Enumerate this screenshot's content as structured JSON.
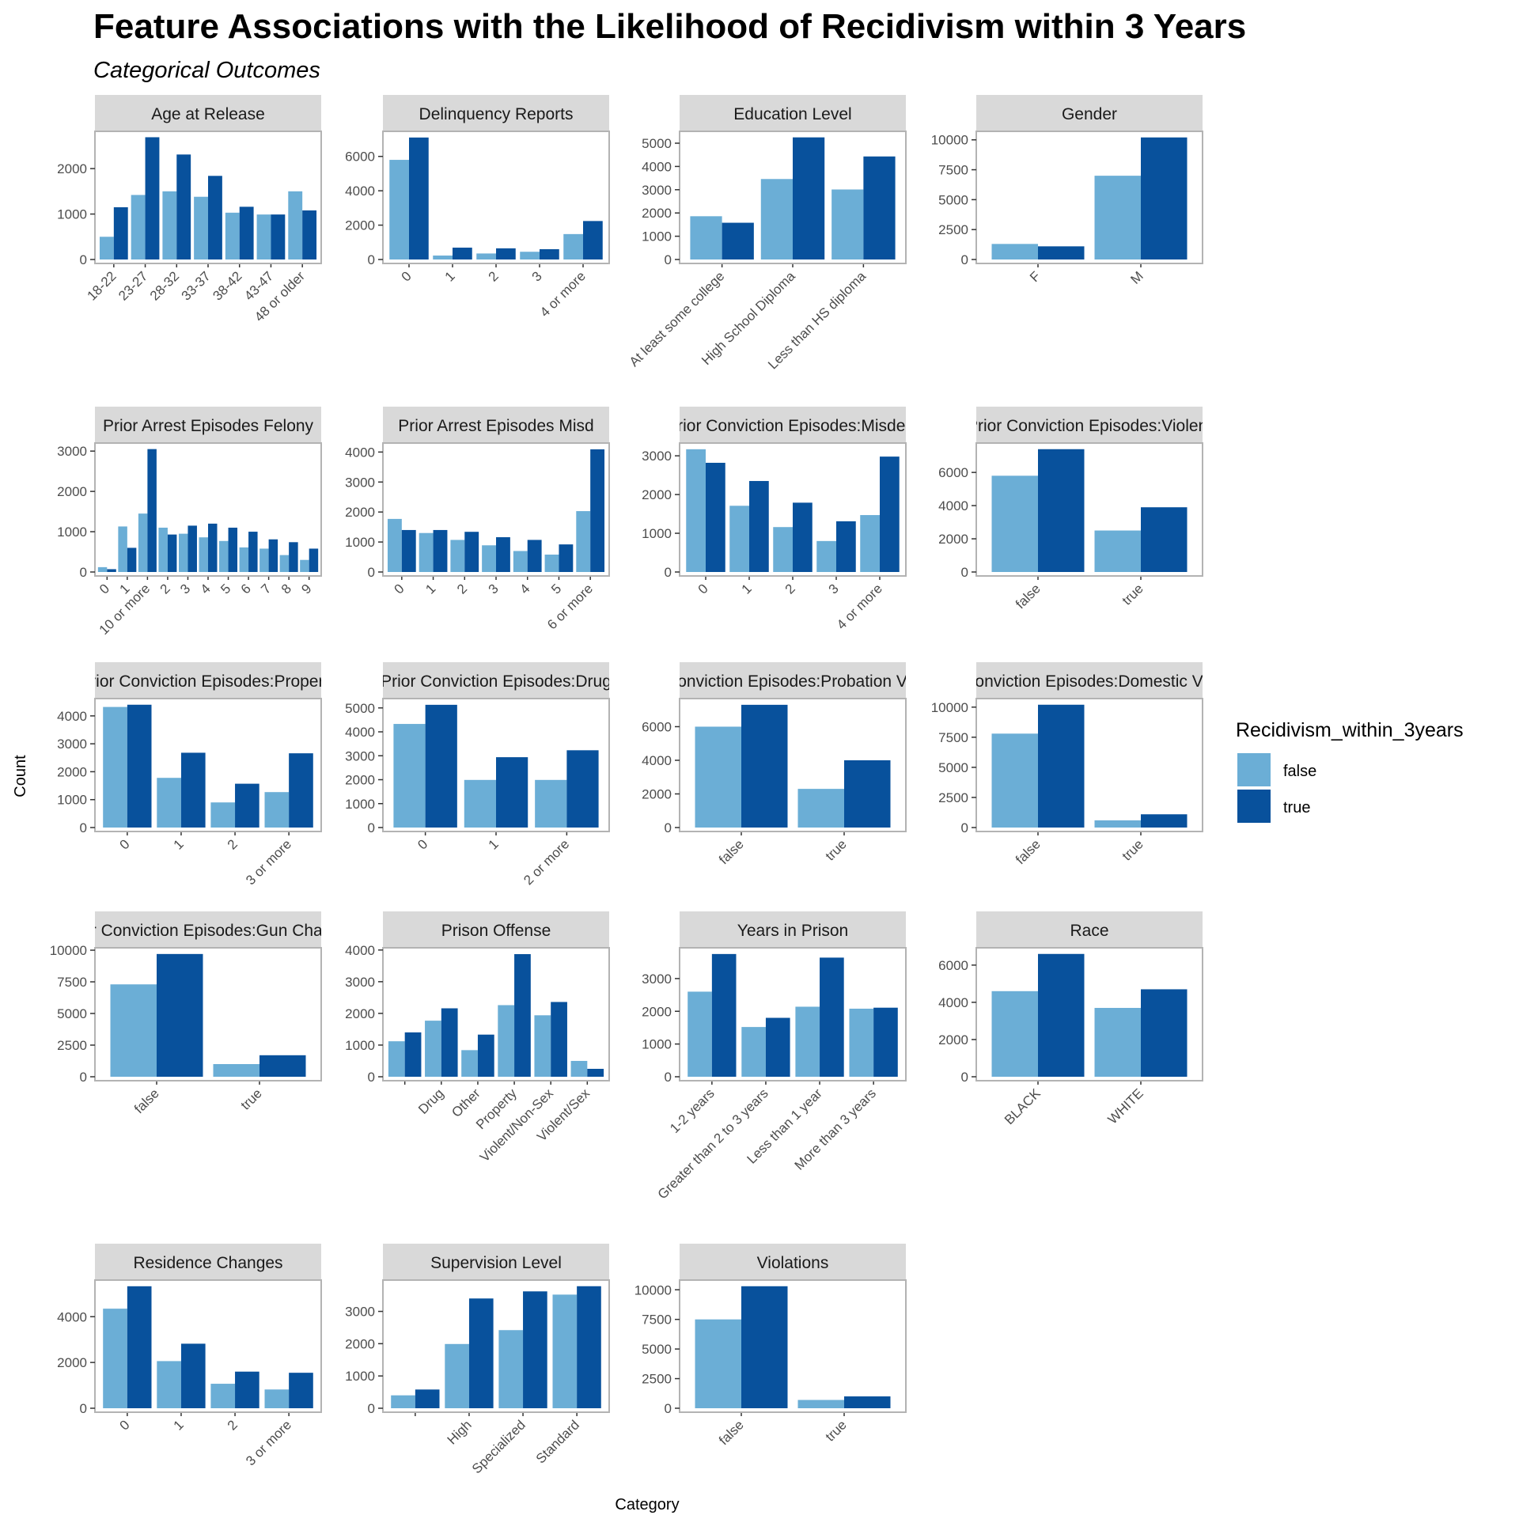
{
  "title": "Feature Associations with the Likelihood of Recidivism within 3 Years",
  "subtitle": "Categorical Outcomes",
  "xlabel": "Category",
  "ylabel": "Count",
  "legend": {
    "title": "Recidivism_within_3years",
    "placement": "right",
    "entries": [
      {
        "label": "false",
        "color": "#6baed6"
      },
      {
        "label": "true",
        "color": "#08519c"
      }
    ]
  },
  "colors": {
    "false": "#6baed6",
    "true": "#08519c",
    "strip": "#d9d9d9",
    "panel_border": "#b3b3b3",
    "text": "#4d4d4d"
  },
  "chart_data": [
    {
      "type": "bar",
      "title": "Age at Release",
      "categories": [
        "18-22",
        "23-27",
        "28-32",
        "33-37",
        "38-42",
        "43-47",
        "48 or older"
      ],
      "series": [
        {
          "name": "false",
          "values": [
            500,
            1420,
            1500,
            1380,
            1030,
            990,
            1500
          ]
        },
        {
          "name": "true",
          "values": [
            1150,
            2690,
            2310,
            1840,
            1160,
            990,
            1080
          ]
        }
      ],
      "yticks": [
        0,
        1000,
        2000
      ],
      "ylim": [
        0,
        2820
      ]
    },
    {
      "type": "bar",
      "title": "Delinquency Reports",
      "categories": [
        "0",
        "1",
        "2",
        "3",
        "4 or more"
      ],
      "series": [
        {
          "name": "false",
          "values": [
            5800,
            230,
            350,
            450,
            1480
          ]
        },
        {
          "name": "true",
          "values": [
            7100,
            690,
            650,
            600,
            2240
          ]
        }
      ],
      "yticks": [
        0,
        2000,
        4000,
        6000
      ],
      "ylim": [
        0,
        7460
      ]
    },
    {
      "type": "bar",
      "title": "Education Level",
      "categories": [
        "At least some college",
        "High School Diploma",
        "Less than HS diploma"
      ],
      "series": [
        {
          "name": "false",
          "values": [
            1860,
            3460,
            3010
          ]
        },
        {
          "name": "true",
          "values": [
            1580,
            5250,
            4430
          ]
        }
      ],
      "yticks": [
        0,
        1000,
        2000,
        3000,
        4000,
        5000
      ],
      "ylim": [
        0,
        5510
      ]
    },
    {
      "type": "bar",
      "title": "Gender",
      "categories": [
        "F",
        "M"
      ],
      "series": [
        {
          "name": "false",
          "values": [
            1300,
            7000
          ]
        },
        {
          "name": "true",
          "values": [
            1100,
            10200
          ]
        }
      ],
      "yticks": [
        0,
        2500,
        5000,
        7500,
        10000
      ],
      "ylim": [
        0,
        10710
      ]
    },
    {
      "type": "bar",
      "title": "Prior Arrest Episodes Felony",
      "categories": [
        "0",
        "1",
        "10 or more",
        "2",
        "3",
        "4",
        "5",
        "6",
        "7",
        "8",
        "9"
      ],
      "series": [
        {
          "name": "false",
          "values": [
            120,
            1130,
            1450,
            1100,
            950,
            860,
            770,
            610,
            580,
            420,
            300
          ]
        },
        {
          "name": "true",
          "values": [
            70,
            600,
            3050,
            930,
            1150,
            1200,
            1100,
            1000,
            810,
            740,
            580
          ]
        }
      ],
      "yticks": [
        0,
        1000,
        2000,
        3000
      ],
      "ylim": [
        0,
        3200
      ]
    },
    {
      "type": "bar",
      "title": "Prior Arrest Episodes Misd",
      "categories": [
        "0",
        "1",
        "2",
        "3",
        "4",
        "5",
        "6 or more"
      ],
      "series": [
        {
          "name": "false",
          "values": [
            1770,
            1300,
            1070,
            890,
            700,
            580,
            2030
          ]
        },
        {
          "name": "true",
          "values": [
            1400,
            1400,
            1340,
            1160,
            1070,
            920,
            4090
          ]
        }
      ],
      "yticks": [
        0,
        1000,
        2000,
        3000,
        4000
      ],
      "ylim": [
        0,
        4300
      ]
    },
    {
      "type": "bar",
      "title": "Prior Conviction Episodes:Misdem",
      "categories": [
        "0",
        "1",
        "2",
        "3",
        "4 or more"
      ],
      "series": [
        {
          "name": "false",
          "values": [
            3170,
            1710,
            1160,
            800,
            1470
          ]
        },
        {
          "name": "true",
          "values": [
            2820,
            2350,
            1790,
            1310,
            2980
          ]
        }
      ],
      "yticks": [
        0,
        1000,
        2000,
        3000
      ],
      "ylim": [
        0,
        3330
      ]
    },
    {
      "type": "bar",
      "title": "Prior Conviction Episodes:Violent",
      "categories": [
        "false",
        "true"
      ],
      "series": [
        {
          "name": "false",
          "values": [
            5800,
            2500
          ]
        },
        {
          "name": "true",
          "values": [
            7400,
            3900
          ]
        }
      ],
      "yticks": [
        0,
        2000,
        4000,
        6000
      ],
      "ylim": [
        0,
        7770
      ]
    },
    {
      "type": "bar",
      "title": "Prior Conviction Episodes:Property",
      "categories": [
        "0",
        "1",
        "2",
        "3 or more"
      ],
      "series": [
        {
          "name": "false",
          "values": [
            4320,
            1780,
            900,
            1270
          ]
        },
        {
          "name": "true",
          "values": [
            4400,
            2680,
            1570,
            2660
          ]
        }
      ],
      "yticks": [
        0,
        1000,
        2000,
        3000,
        4000
      ],
      "ylim": [
        0,
        4620
      ]
    },
    {
      "type": "bar",
      "title": "Prior Conviction Episodes:Drug",
      "categories": [
        "0",
        "1",
        "2 or more"
      ],
      "series": [
        {
          "name": "false",
          "values": [
            4330,
            1990,
            1990
          ]
        },
        {
          "name": "true",
          "values": [
            5130,
            2940,
            3230
          ]
        }
      ],
      "yticks": [
        0,
        1000,
        2000,
        3000,
        4000,
        5000
      ],
      "ylim": [
        0,
        5390
      ]
    },
    {
      "type": "bar",
      "title": "Prior Conviction Episodes:Probation Violation",
      "categories": [
        "false",
        "true"
      ],
      "series": [
        {
          "name": "false",
          "values": [
            6000,
            2300
          ]
        },
        {
          "name": "true",
          "values": [
            7300,
            4000
          ]
        }
      ],
      "yticks": [
        0,
        2000,
        4000,
        6000
      ],
      "ylim": [
        0,
        7670
      ]
    },
    {
      "type": "bar",
      "title": "Prior Conviction Episodes:Domestic Violence",
      "categories": [
        "false",
        "true"
      ],
      "series": [
        {
          "name": "false",
          "values": [
            7800,
            600
          ]
        },
        {
          "name": "true",
          "values": [
            10200,
            1100
          ]
        }
      ],
      "yticks": [
        0,
        2500,
        5000,
        7500,
        10000
      ],
      "ylim": [
        0,
        10710
      ]
    },
    {
      "type": "bar",
      "title": "Prior Conviction Episodes:Gun Charges",
      "categories": [
        "false",
        "true"
      ],
      "series": [
        {
          "name": "false",
          "values": [
            7300,
            1000
          ]
        },
        {
          "name": "true",
          "values": [
            9700,
            1700
          ]
        }
      ],
      "yticks": [
        0,
        2500,
        5000,
        7500,
        10000
      ],
      "ylim": [
        0,
        10190
      ]
    },
    {
      "type": "bar",
      "title": "Prison Offense",
      "categories": [
        "",
        "Drug",
        "Other",
        "Property",
        "Violent/Non-Sex",
        "Violent/Sex"
      ],
      "series": [
        {
          "name": "false",
          "values": [
            1120,
            1770,
            840,
            2260,
            1940,
            500
          ]
        },
        {
          "name": "true",
          "values": [
            1400,
            2160,
            1330,
            3870,
            2360,
            250
          ]
        }
      ],
      "yticks": [
        0,
        1000,
        2000,
        3000,
        4000
      ],
      "ylim": [
        0,
        4070
      ]
    },
    {
      "type": "bar",
      "title": "Years in Prison",
      "categories": [
        "1-2 years",
        "Greater than 2 to 3 years",
        "Less than 1 year",
        "More than 3 years"
      ],
      "series": [
        {
          "name": "false",
          "values": [
            2600,
            1520,
            2140,
            2080
          ]
        },
        {
          "name": "true",
          "values": [
            3750,
            1800,
            3640,
            2110
          ]
        }
      ],
      "yticks": [
        0,
        1000,
        2000,
        3000
      ],
      "ylim": [
        0,
        3940
      ]
    },
    {
      "type": "bar",
      "title": "Race",
      "categories": [
        "BLACK",
        "WHITE"
      ],
      "series": [
        {
          "name": "false",
          "values": [
            4600,
            3700
          ]
        },
        {
          "name": "true",
          "values": [
            6600,
            4700
          ]
        }
      ],
      "yticks": [
        0,
        2000,
        4000,
        6000
      ],
      "ylim": [
        0,
        6930
      ]
    },
    {
      "type": "bar",
      "title": "Residence Changes",
      "categories": [
        "0",
        "1",
        "2",
        "3 or more"
      ],
      "series": [
        {
          "name": "false",
          "values": [
            4350,
            2060,
            1070,
            820
          ]
        },
        {
          "name": "true",
          "values": [
            5330,
            2820,
            1600,
            1550
          ]
        }
      ],
      "yticks": [
        0,
        2000,
        4000
      ],
      "ylim": [
        0,
        5600
      ]
    },
    {
      "type": "bar",
      "title": "Supervision Level",
      "categories": [
        "",
        "High",
        "Specialized",
        "Standard"
      ],
      "series": [
        {
          "name": "false",
          "values": [
            400,
            1990,
            2420,
            3520
          ]
        },
        {
          "name": "true",
          "values": [
            580,
            3400,
            3620,
            3780
          ]
        }
      ],
      "yticks": [
        0,
        1000,
        2000,
        3000
      ],
      "ylim": [
        0,
        3970
      ]
    },
    {
      "type": "bar",
      "title": "Violations",
      "categories": [
        "false",
        "true"
      ],
      "series": [
        {
          "name": "false",
          "values": [
            7500,
            700
          ]
        },
        {
          "name": "true",
          "values": [
            10300,
            1000
          ]
        }
      ],
      "yticks": [
        0,
        2500,
        5000,
        7500,
        10000
      ],
      "ylim": [
        0,
        10820
      ]
    }
  ]
}
